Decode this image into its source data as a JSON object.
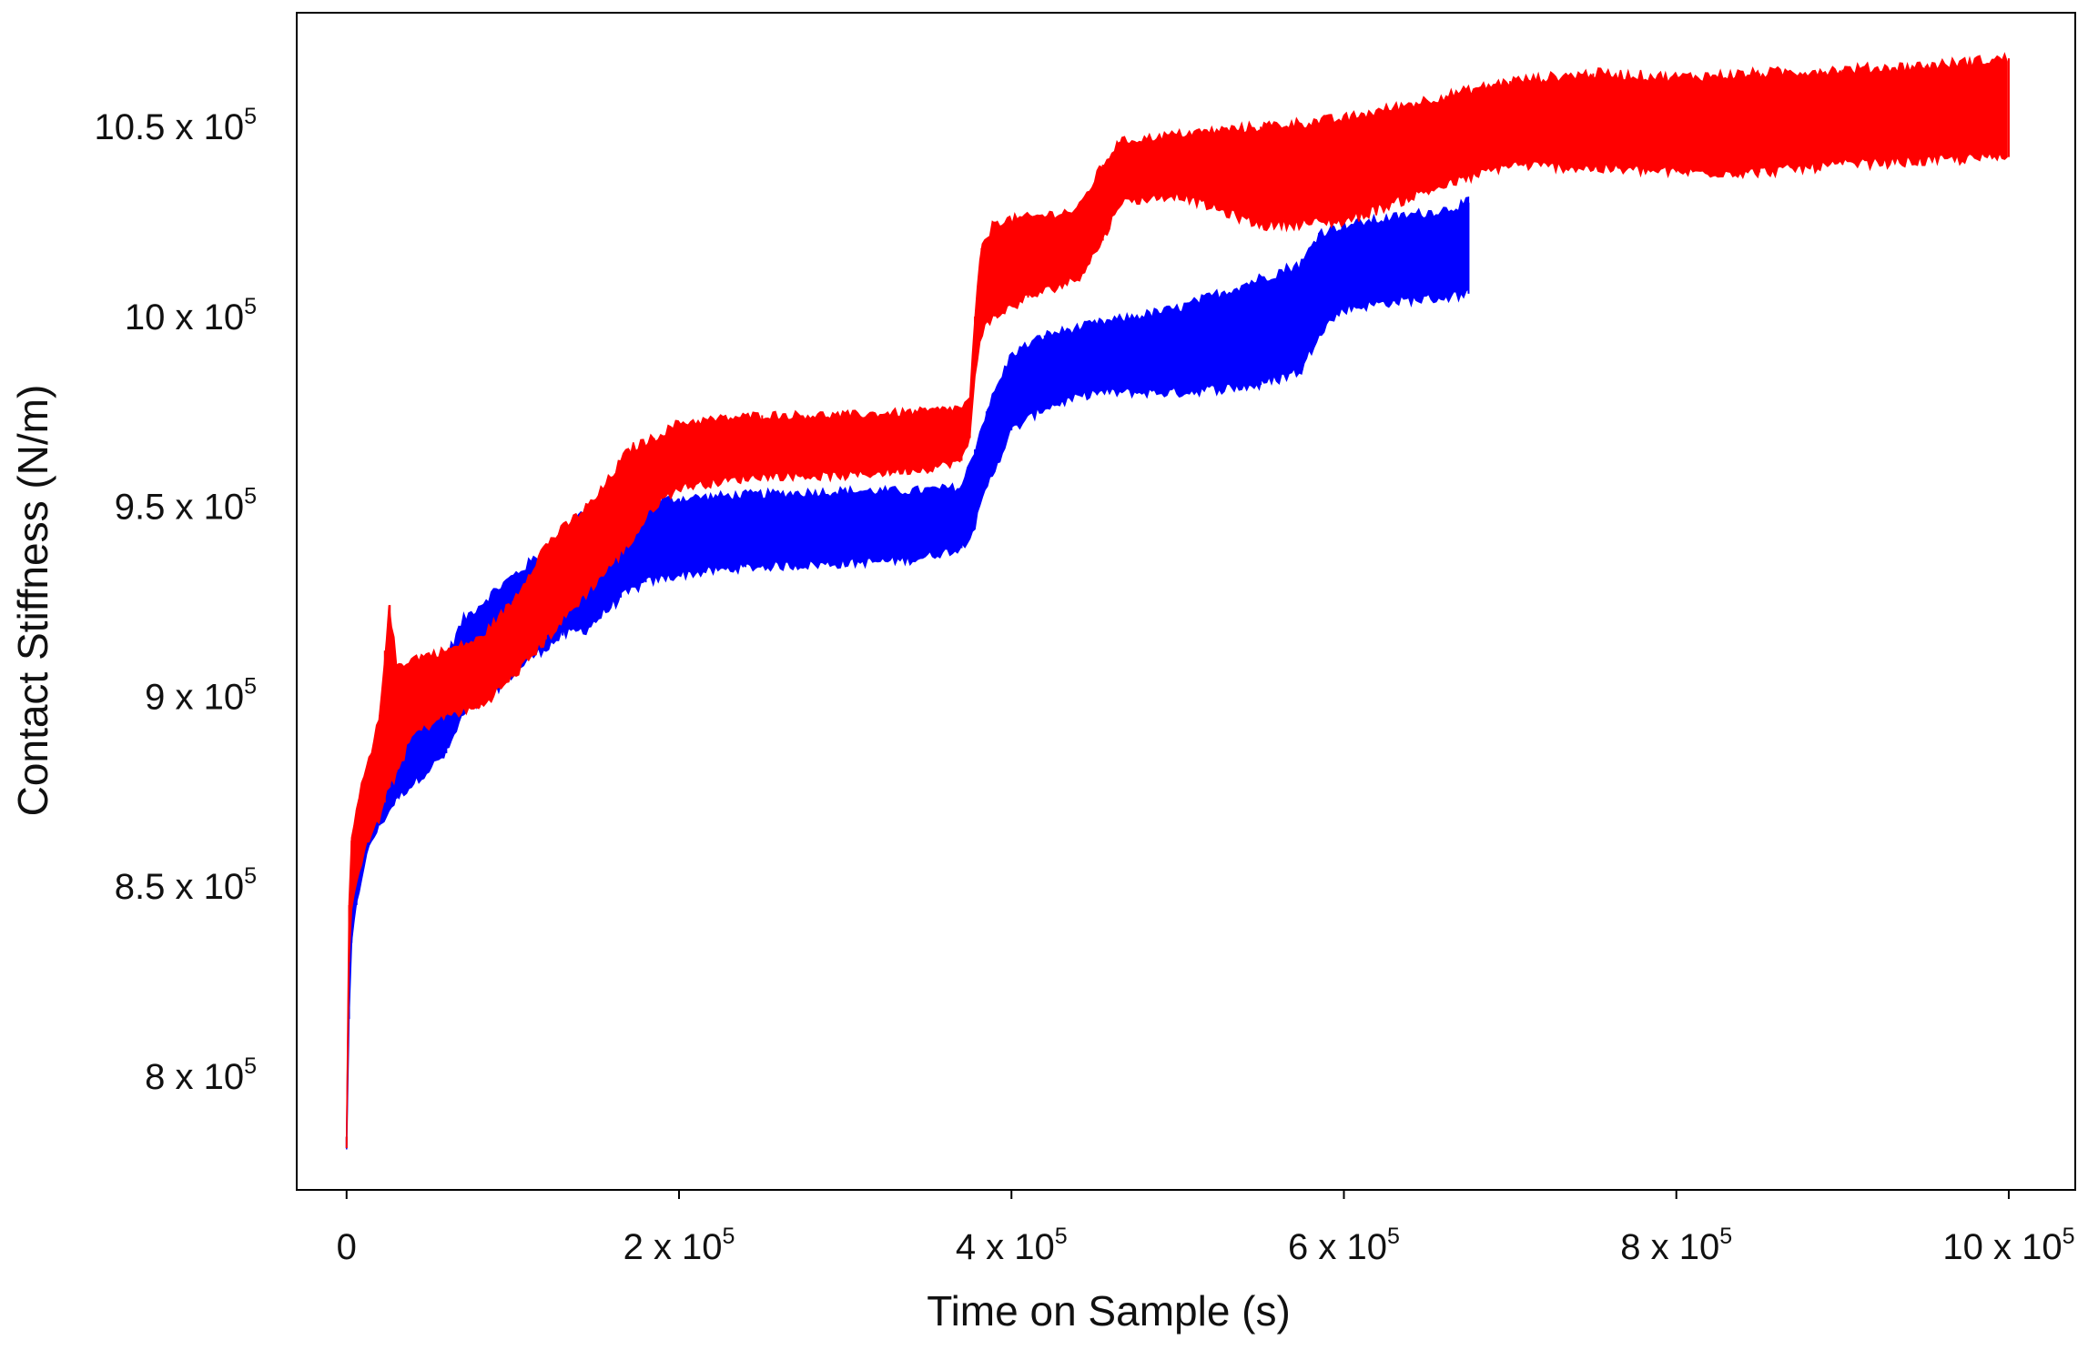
{
  "chart_data": {
    "type": "line",
    "title": "",
    "xlabel": "Time on Sample (s)",
    "ylabel": "Contact Stiffness (N/m)",
    "xlim": [
      -30000,
      1040000
    ],
    "ylim": [
      770000,
      1080000
    ],
    "grid": false,
    "legend": "none",
    "x_ticks": [
      {
        "value": 0,
        "mantissa": "0",
        "exp": ""
      },
      {
        "value": 200000,
        "mantissa": "2 x 10",
        "exp": "5"
      },
      {
        "value": 400000,
        "mantissa": "4 x 10",
        "exp": "5"
      },
      {
        "value": 600000,
        "mantissa": "6 x 10",
        "exp": "5"
      },
      {
        "value": 800000,
        "mantissa": "8 x 10",
        "exp": "5"
      },
      {
        "value": 1000000,
        "mantissa": "10 x 10",
        "exp": "5"
      }
    ],
    "y_ticks": [
      {
        "value": 800000,
        "mantissa": "8 x 10",
        "exp": "5"
      },
      {
        "value": 850000,
        "mantissa": "8.5 x 10",
        "exp": "5"
      },
      {
        "value": 900000,
        "mantissa": "9 x 10",
        "exp": "5"
      },
      {
        "value": 950000,
        "mantissa": "9.5 x 10",
        "exp": "5"
      },
      {
        "value": 1000000,
        "mantissa": "10 x 10",
        "exp": "5"
      },
      {
        "value": 1050000,
        "mantissa": "10.5 x 10",
        "exp": "5"
      }
    ],
    "series": [
      {
        "name": "blue",
        "color": "#0000ff",
        "x": [
          0,
          1500,
          3000,
          6000,
          10000,
          15000,
          20000,
          30000,
          45000,
          60000,
          70000,
          90000,
          110000,
          130000,
          145000,
          165000,
          180000,
          200000,
          240000,
          300000,
          340000,
          370000,
          378000,
          385000,
          400000,
          420000,
          450000,
          500000,
          550000,
          575000,
          585000,
          600000,
          630000,
          660000,
          675000
        ],
        "low": [
          781000,
          815000,
          835000,
          845000,
          855000,
          862000,
          866000,
          873000,
          879000,
          885000,
          895000,
          902000,
          910000,
          916000,
          918000,
          926000,
          930000,
          932000,
          934000,
          935000,
          936000,
          939000,
          945000,
          955000,
          970000,
          976000,
          980000,
          980000,
          982000,
          986000,
          996000,
          1002000,
          1004000,
          1005000,
          1006000
        ],
        "high": [
          784000,
          835000,
          855000,
          862000,
          870000,
          876000,
          881000,
          887000,
          895000,
          910000,
          920000,
          928000,
          935000,
          942000,
          950000,
          952000,
          951000,
          952000,
          953000,
          954000,
          954000,
          955000,
          965000,
          975000,
          990000,
          995000,
          998000,
          1002000,
          1010000,
          1014000,
          1022000,
          1024000,
          1026000,
          1028000,
          1030000
        ]
      },
      {
        "name": "red",
        "color": "#ff0000",
        "x": [
          0,
          1500,
          3000,
          6000,
          10000,
          15000,
          20000,
          23000,
          26000,
          30000,
          40000,
          60000,
          80000,
          100000,
          120000,
          150000,
          170000,
          185000,
          200000,
          250000,
          300000,
          350000,
          370000,
          375000,
          378000,
          382000,
          390000,
          410000,
          440000,
          455000,
          465000,
          500000,
          550000,
          600000,
          650000,
          700000,
          750000,
          800000,
          850000,
          900000,
          950000,
          1000000
        ],
        "low": [
          781000,
          830000,
          845000,
          852000,
          858000,
          864000,
          868000,
          872000,
          876000,
          880000,
          890000,
          895000,
          897000,
          905000,
          915000,
          930000,
          940000,
          950000,
          955000,
          958000,
          958000,
          960000,
          962000,
          968000,
          985000,
          996000,
          1000000,
          1005000,
          1010000,
          1020000,
          1030000,
          1032000,
          1024000,
          1025000,
          1033000,
          1040000,
          1039000,
          1038000,
          1038000,
          1040000,
          1041000,
          1042000
        ],
        "high": [
          784000,
          845000,
          862000,
          870000,
          878000,
          885000,
          895000,
          912000,
          924000,
          908000,
          910000,
          912000,
          915000,
          925000,
          940000,
          952000,
          965000,
          968000,
          972000,
          974000,
          974000,
          975000,
          976000,
          978000,
          1000000,
          1018000,
          1025000,
          1026000,
          1028000,
          1040000,
          1046000,
          1048000,
          1050000,
          1052000,
          1057000,
          1062000,
          1064000,
          1063000,
          1064000,
          1065000,
          1066000,
          1068000
        ]
      }
    ]
  }
}
